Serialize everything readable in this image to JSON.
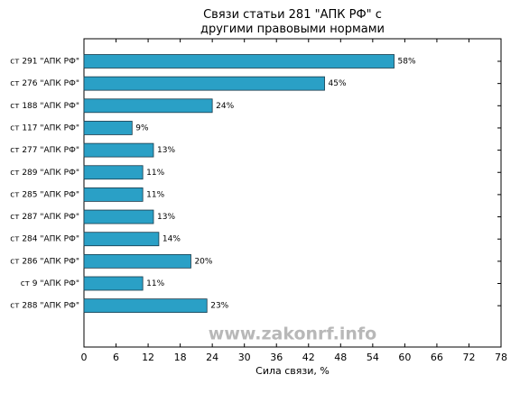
{
  "chart_data": {
    "type": "barh",
    "title": "Связи статьи 281 \"АПК РФ\" с\nдругими правовыми нормами",
    "xlabel": "Сила связи, %",
    "watermark": "www.zakonrf.info",
    "categories": [
      "ст 291 \"АПК РФ\"",
      "ст 276 \"АПК РФ\"",
      "ст 188 \"АПК РФ\"",
      "ст 117 \"АПК РФ\"",
      "ст 277 \"АПК РФ\"",
      "ст 289 \"АПК РФ\"",
      "ст 285 \"АПК РФ\"",
      "ст 287 \"АПК РФ\"",
      "ст 284 \"АПК РФ\"",
      "ст 286 \"АПК РФ\"",
      "ст 9 \"АПК РФ\"",
      "ст 288 \"АПК РФ\""
    ],
    "values": [
      58,
      45,
      24,
      9,
      13,
      11,
      11,
      13,
      14,
      20,
      11,
      23
    ],
    "value_labels": [
      "58%",
      "45%",
      "24%",
      "9%",
      "13%",
      "11%",
      "11%",
      "13%",
      "14%",
      "20%",
      "11%",
      "23%"
    ],
    "color": "#2aa0c6",
    "xlim": [
      0,
      78
    ],
    "xticks": [
      0,
      6,
      12,
      18,
      24,
      30,
      36,
      42,
      48,
      54,
      60,
      66,
      72,
      78
    ]
  }
}
